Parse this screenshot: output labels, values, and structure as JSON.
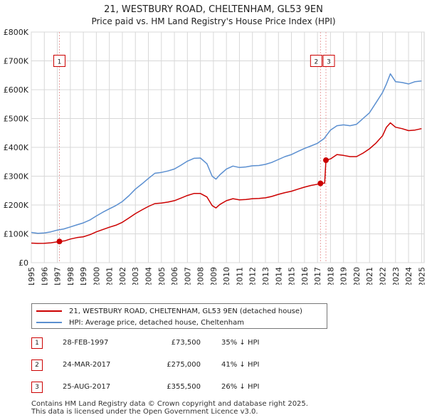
{
  "title": "21, WESTBURY ROAD, CHELTENHAM, GL53 9EN",
  "subtitle": "Price paid vs. HM Land Registry's House Price Index (HPI)",
  "legend": {
    "property_label": "21, WESTBURY ROAD, CHELTENHAM, GL53 9EN (detached house)",
    "hpi_label": "HPI: Average price, detached house, Cheltenham"
  },
  "colors": {
    "property": "#cc0000",
    "hpi": "#5b8fd0",
    "grid": "#d8d8d8",
    "marker_line": "#e8a0a0"
  },
  "sales": [
    {
      "num": "1",
      "date": "28-FEB-1997",
      "price": "£73,500",
      "hpi": "35% ↓ HPI"
    },
    {
      "num": "2",
      "date": "24-MAR-2017",
      "price": "£275,000",
      "hpi": "41% ↓ HPI"
    },
    {
      "num": "3",
      "date": "25-AUG-2017",
      "price": "£355,500",
      "hpi": "26% ↓ HPI"
    }
  ],
  "footer": {
    "line1": "Contains HM Land Registry data © Crown copyright and database right 2025.",
    "line2": "This data is licensed under the Open Government Licence v3.0."
  },
  "chart_data": {
    "type": "line",
    "title": "21, WESTBURY ROAD, CHELTENHAM, GL53 9EN",
    "xlabel": "",
    "ylabel": "",
    "xlim": [
      1995,
      2025.2
    ],
    "ylim": [
      0,
      800000
    ],
    "x_ticks": [
      1995,
      1996,
      1997,
      1998,
      1999,
      2000,
      2001,
      2002,
      2003,
      2004,
      2005,
      2006,
      2007,
      2008,
      2009,
      2010,
      2011,
      2012,
      2013,
      2014,
      2015,
      2016,
      2017,
      2018,
      2019,
      2020,
      2021,
      2022,
      2023,
      2024,
      2025
    ],
    "y_ticks": [
      0,
      100000,
      200000,
      300000,
      400000,
      500000,
      600000,
      700000,
      800000
    ],
    "y_tick_labels": [
      "£0",
      "£100K",
      "£200K",
      "£300K",
      "£400K",
      "£500K",
      "£600K",
      "£700K",
      "£800K"
    ],
    "grid": true,
    "series": [
      {
        "name": "21, WESTBURY ROAD, CHELTENHAM, GL53 9EN (detached house)",
        "color": "#cc0000",
        "points": [
          [
            1995.0,
            68000
          ],
          [
            1995.5,
            67000
          ],
          [
            1996.0,
            67500
          ],
          [
            1996.5,
            69000
          ],
          [
            1997.16,
            73500
          ],
          [
            1997.6,
            76000
          ],
          [
            1998.0,
            82000
          ],
          [
            1998.5,
            87000
          ],
          [
            1999.0,
            90000
          ],
          [
            1999.5,
            97000
          ],
          [
            2000.0,
            107000
          ],
          [
            2000.5,
            115000
          ],
          [
            2001.0,
            123000
          ],
          [
            2001.5,
            130000
          ],
          [
            2002.0,
            140000
          ],
          [
            2002.5,
            155000
          ],
          [
            2003.0,
            170000
          ],
          [
            2003.5,
            183000
          ],
          [
            2004.0,
            195000
          ],
          [
            2004.5,
            205000
          ],
          [
            2005.0,
            207000
          ],
          [
            2005.5,
            210000
          ],
          [
            2006.0,
            215000
          ],
          [
            2006.5,
            224000
          ],
          [
            2007.0,
            233000
          ],
          [
            2007.5,
            240000
          ],
          [
            2008.0,
            240000
          ],
          [
            2008.5,
            228000
          ],
          [
            2008.9,
            198000
          ],
          [
            2009.2,
            190000
          ],
          [
            2009.5,
            202000
          ],
          [
            2010.0,
            215000
          ],
          [
            2010.5,
            222000
          ],
          [
            2011.0,
            218000
          ],
          [
            2011.5,
            219000
          ],
          [
            2012.0,
            222000
          ],
          [
            2012.5,
            223000
          ],
          [
            2013.0,
            225000
          ],
          [
            2013.5,
            230000
          ],
          [
            2014.0,
            237000
          ],
          [
            2014.5,
            243000
          ],
          [
            2015.0,
            248000
          ],
          [
            2015.5,
            255000
          ],
          [
            2016.0,
            262000
          ],
          [
            2016.5,
            268000
          ],
          [
            2017.0,
            272000
          ],
          [
            2017.23,
            275000
          ],
          [
            2017.23,
            275000
          ],
          [
            2017.55,
            276000
          ],
          [
            2017.65,
            355500
          ],
          [
            2018.0,
            360000
          ],
          [
            2018.5,
            375000
          ],
          [
            2019.0,
            372000
          ],
          [
            2019.5,
            368000
          ],
          [
            2020.0,
            368000
          ],
          [
            2020.5,
            380000
          ],
          [
            2021.0,
            395000
          ],
          [
            2021.5,
            415000
          ],
          [
            2022.0,
            440000
          ],
          [
            2022.3,
            470000
          ],
          [
            2022.6,
            485000
          ],
          [
            2023.0,
            470000
          ],
          [
            2023.5,
            465000
          ],
          [
            2024.0,
            458000
          ],
          [
            2024.5,
            460000
          ],
          [
            2025.0,
            465000
          ]
        ]
      },
      {
        "name": "HPI: Average price, detached house, Cheltenham",
        "color": "#5b8fd0",
        "points": [
          [
            1995.0,
            105000
          ],
          [
            1995.5,
            102000
          ],
          [
            1996.0,
            103000
          ],
          [
            1996.5,
            107000
          ],
          [
            1997.0,
            113000
          ],
          [
            1997.5,
            117000
          ],
          [
            1998.0,
            124000
          ],
          [
            1998.5,
            131000
          ],
          [
            1999.0,
            138000
          ],
          [
            1999.5,
            148000
          ],
          [
            2000.0,
            162000
          ],
          [
            2000.5,
            175000
          ],
          [
            2001.0,
            187000
          ],
          [
            2001.5,
            198000
          ],
          [
            2002.0,
            212000
          ],
          [
            2002.5,
            232000
          ],
          [
            2003.0,
            255000
          ],
          [
            2003.5,
            273000
          ],
          [
            2004.0,
            292000
          ],
          [
            2004.5,
            310000
          ],
          [
            2005.0,
            313000
          ],
          [
            2005.5,
            318000
          ],
          [
            2006.0,
            325000
          ],
          [
            2006.5,
            338000
          ],
          [
            2007.0,
            352000
          ],
          [
            2007.5,
            362000
          ],
          [
            2008.0,
            363000
          ],
          [
            2008.5,
            343000
          ],
          [
            2008.9,
            300000
          ],
          [
            2009.2,
            290000
          ],
          [
            2009.5,
            305000
          ],
          [
            2010.0,
            325000
          ],
          [
            2010.5,
            335000
          ],
          [
            2011.0,
            330000
          ],
          [
            2011.5,
            332000
          ],
          [
            2012.0,
            336000
          ],
          [
            2012.5,
            337000
          ],
          [
            2013.0,
            341000
          ],
          [
            2013.5,
            348000
          ],
          [
            2014.0,
            358000
          ],
          [
            2014.5,
            368000
          ],
          [
            2015.0,
            375000
          ],
          [
            2015.5,
            386000
          ],
          [
            2016.0,
            396000
          ],
          [
            2016.5,
            405000
          ],
          [
            2017.0,
            414000
          ],
          [
            2017.5,
            430000
          ],
          [
            2018.0,
            460000
          ],
          [
            2018.5,
            475000
          ],
          [
            2019.0,
            478000
          ],
          [
            2019.5,
            475000
          ],
          [
            2020.0,
            480000
          ],
          [
            2020.5,
            500000
          ],
          [
            2021.0,
            520000
          ],
          [
            2021.5,
            555000
          ],
          [
            2022.0,
            590000
          ],
          [
            2022.3,
            620000
          ],
          [
            2022.6,
            655000
          ],
          [
            2023.0,
            628000
          ],
          [
            2023.5,
            625000
          ],
          [
            2024.0,
            620000
          ],
          [
            2024.5,
            628000
          ],
          [
            2025.0,
            630000
          ]
        ]
      }
    ],
    "markers": [
      {
        "label": "1",
        "x": 1997.16,
        "y": 73500
      },
      {
        "label": "2",
        "x": 2017.23,
        "y": 275000
      },
      {
        "label": "3",
        "x": 2017.65,
        "y": 355500
      }
    ]
  }
}
